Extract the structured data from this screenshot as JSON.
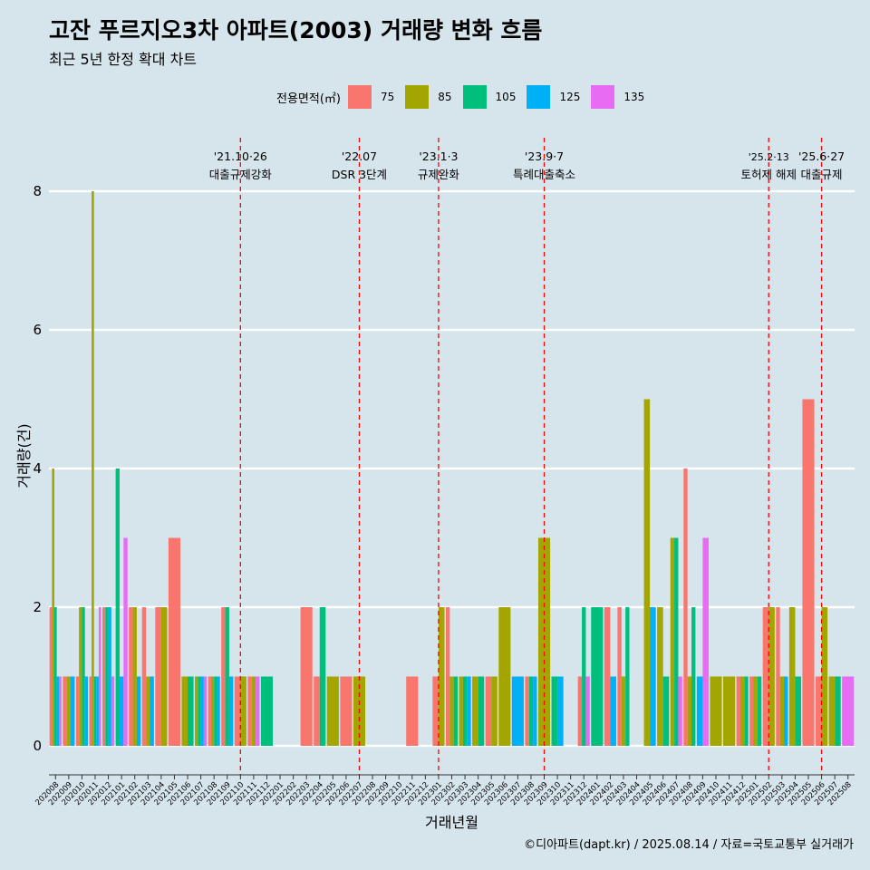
{
  "title": "고잔 푸르지오3차 아파트(2003) 거래량 변화 흐름",
  "subtitle": "최근 5년 한정 확대 차트",
  "caption": "©디아파트(dapt.kr) / 2025.08.14 / 자료=국토교통부 실거래가",
  "legend": {
    "title": "전용면적(㎡)",
    "items": [
      {
        "label": "75",
        "color": "#f8766d"
      },
      {
        "label": "85",
        "color": "#a3a500"
      },
      {
        "label": "105",
        "color": "#00bf7d"
      },
      {
        "label": "125",
        "color": "#00b0f6"
      },
      {
        "label": "135",
        "color": "#e76bf3"
      }
    ]
  },
  "chart_data": {
    "type": "bar",
    "xlabel": "거래년월",
    "ylabel": "거래량(건)",
    "ylim": [
      0,
      8
    ],
    "yticks": [
      0,
      2,
      4,
      6,
      8
    ],
    "grid": true,
    "legend_position": "top",
    "categories": [
      "202008",
      "202009",
      "202010",
      "202011",
      "202012",
      "202101",
      "202102",
      "202103",
      "202104",
      "202105",
      "202106",
      "202107",
      "202108",
      "202109",
      "202110",
      "202111",
      "202112",
      "202201",
      "202202",
      "202203",
      "202204",
      "202205",
      "202206",
      "202207",
      "202208",
      "202209",
      "202210",
      "202211",
      "202212",
      "202301",
      "202302",
      "202303",
      "202304",
      "202305",
      "202306",
      "202307",
      "202308",
      "202309",
      "202310",
      "202311",
      "202312",
      "202401",
      "202402",
      "202403",
      "202404",
      "202405",
      "202406",
      "202407",
      "202408",
      "202409",
      "202410",
      "202411",
      "202412",
      "202501",
      "202502",
      "202503",
      "202504",
      "202505",
      "202506",
      "202507",
      "202508"
    ],
    "series": [
      {
        "name": "75",
        "color": "#f8766d",
        "values": [
          2,
          1,
          1,
          1,
          2,
          0,
          2,
          2,
          2,
          3,
          0,
          0,
          1,
          2,
          1,
          1,
          0,
          0,
          0,
          2,
          1,
          0,
          1,
          0,
          0,
          0,
          0,
          1,
          0,
          1,
          2,
          0,
          0,
          1,
          0,
          0,
          1,
          0,
          0,
          0,
          1,
          0,
          2,
          2,
          0,
          0,
          0,
          0,
          4,
          0,
          0,
          0,
          1,
          1,
          2,
          2,
          0,
          5,
          1,
          0,
          0
        ]
      },
      {
        "name": "85",
        "color": "#a3a500",
        "values": [
          4,
          1,
          2,
          8,
          0,
          0,
          2,
          1,
          2,
          0,
          1,
          1,
          1,
          0,
          1,
          1,
          0,
          0,
          0,
          0,
          0,
          1,
          0,
          1,
          0,
          0,
          0,
          0,
          0,
          2,
          1,
          1,
          1,
          1,
          2,
          0,
          0,
          3,
          0,
          0,
          0,
          0,
          0,
          1,
          0,
          5,
          2,
          3,
          1,
          0,
          1,
          1,
          1,
          1,
          2,
          1,
          2,
          0,
          2,
          1,
          0
        ]
      },
      {
        "name": "105",
        "color": "#00bf7d",
        "values": [
          2,
          0,
          2,
          1,
          2,
          4,
          0,
          0,
          0,
          0,
          1,
          1,
          1,
          2,
          0,
          0,
          1,
          0,
          0,
          0,
          2,
          0,
          0,
          0,
          0,
          0,
          0,
          0,
          0,
          0,
          1,
          1,
          1,
          0,
          0,
          0,
          1,
          0,
          1,
          0,
          2,
          2,
          0,
          2,
          0,
          0,
          1,
          3,
          2,
          0,
          0,
          0,
          1,
          1,
          0,
          0,
          1,
          0,
          0,
          1,
          0
        ]
      },
      {
        "name": "125",
        "color": "#00b0f6",
        "values": [
          1,
          1,
          1,
          1,
          2,
          1,
          1,
          1,
          0,
          0,
          0,
          1,
          1,
          1,
          0,
          0,
          0,
          0,
          0,
          0,
          0,
          0,
          0,
          0,
          0,
          0,
          0,
          0,
          0,
          0,
          0,
          1,
          0,
          0,
          0,
          1,
          1,
          0,
          1,
          0,
          0,
          0,
          1,
          0,
          0,
          2,
          0,
          0,
          0,
          1,
          0,
          0,
          0,
          0,
          0,
          1,
          0,
          0,
          0,
          0,
          0
        ]
      },
      {
        "name": "135",
        "color": "#e76bf3",
        "values": [
          1,
          0,
          0,
          2,
          1,
          3,
          0,
          0,
          0,
          0,
          0,
          1,
          0,
          0,
          0,
          1,
          0,
          0,
          0,
          0,
          0,
          0,
          0,
          0,
          0,
          0,
          0,
          0,
          0,
          0,
          0,
          0,
          0,
          0,
          0,
          0,
          0,
          0,
          0,
          0,
          1,
          0,
          0,
          0,
          0,
          0,
          0,
          1,
          0,
          3,
          0,
          0,
          0,
          0,
          0,
          0,
          0,
          0,
          0,
          0,
          1
        ]
      }
    ],
    "annotations": [
      {
        "x": "202110",
        "date": "'21.10·26",
        "label": "대출규제강화"
      },
      {
        "x": "202207",
        "date": "'22.07",
        "label": "DSR 3단계"
      },
      {
        "x": "202301",
        "date": "'23.1·3",
        "label": "규제완화"
      },
      {
        "x": "202309",
        "date": "'23.9·7",
        "label": "특례대출축소"
      },
      {
        "x": "202502",
        "date": "'25.2·13",
        "label": "토허제 해제"
      },
      {
        "x": "202506",
        "date": "'25.6·27",
        "label": "대출규제"
      }
    ]
  }
}
